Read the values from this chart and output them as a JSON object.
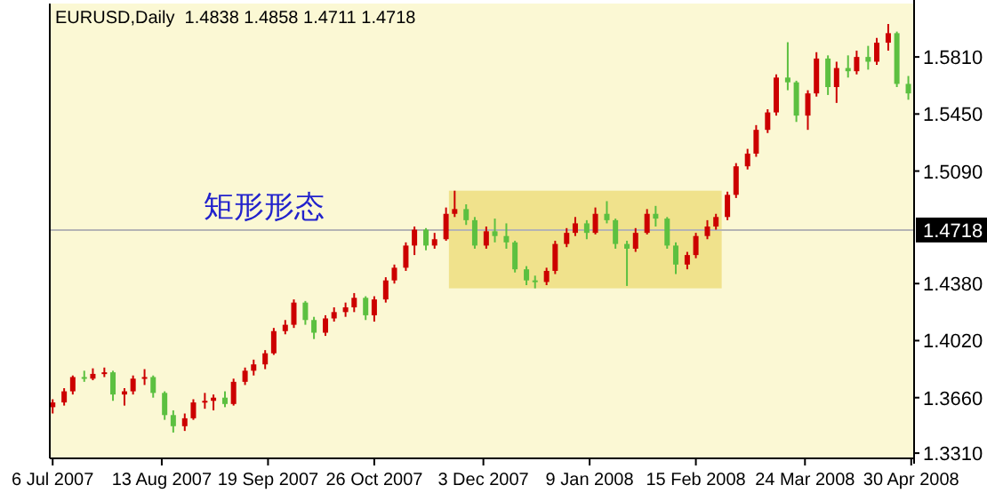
{
  "chart_data": {
    "type": "candlestick",
    "title": "EURUSD,Daily  1.4838 1.4858 1.4711 1.4718",
    "x": [
      "2007-07-06",
      "2007-07-10",
      "2007-07-13",
      "2007-07-17",
      "2007-07-20",
      "2007-07-24",
      "2007-07-27",
      "2007-07-31",
      "2007-08-03",
      "2007-08-07",
      "2007-08-10",
      "2007-08-14",
      "2007-08-17",
      "2007-08-21",
      "2007-08-24",
      "2007-08-28",
      "2007-08-31",
      "2007-09-04",
      "2007-09-07",
      "2007-09-11",
      "2007-09-14",
      "2007-09-18",
      "2007-09-21",
      "2007-09-25",
      "2007-09-28",
      "2007-10-02",
      "2007-10-05",
      "2007-10-09",
      "2007-10-12",
      "2007-10-16",
      "2007-10-19",
      "2007-10-23",
      "2007-10-26",
      "2007-10-30",
      "2007-11-02",
      "2007-11-06",
      "2007-11-09",
      "2007-11-13",
      "2007-11-16",
      "2007-11-20",
      "2007-11-23",
      "2007-11-27",
      "2007-11-30",
      "2007-12-04",
      "2007-12-07",
      "2007-12-11",
      "2007-12-14",
      "2007-12-18",
      "2007-12-21",
      "2007-12-25",
      "2007-12-28",
      "2008-01-01",
      "2008-01-04",
      "2008-01-08",
      "2008-01-11",
      "2008-01-15",
      "2008-01-18",
      "2008-01-22",
      "2008-01-25",
      "2008-01-29",
      "2008-02-01",
      "2008-02-05",
      "2008-02-08",
      "2008-02-12",
      "2008-02-15",
      "2008-02-19",
      "2008-02-22",
      "2008-02-26",
      "2008-02-29",
      "2008-03-04",
      "2008-03-07",
      "2008-03-11",
      "2008-03-14",
      "2008-03-18",
      "2008-03-21",
      "2008-03-25",
      "2008-03-28",
      "2008-04-01",
      "2008-04-04",
      "2008-04-08",
      "2008-04-11",
      "2008-04-15",
      "2008-04-18",
      "2008-04-22",
      "2008-04-25",
      "2008-04-29"
    ],
    "ohlc": [
      [
        1.36,
        1.365,
        1.356,
        1.363
      ],
      [
        1.363,
        1.372,
        1.361,
        1.37
      ],
      [
        1.37,
        1.38,
        1.368,
        1.379
      ],
      [
        1.379,
        1.383,
        1.376,
        1.378
      ],
      [
        1.378,
        1.3845,
        1.377,
        1.381
      ],
      [
        1.381,
        1.385,
        1.379,
        1.382
      ],
      [
        1.382,
        1.383,
        1.364,
        1.368
      ],
      [
        1.368,
        1.372,
        1.361,
        1.37
      ],
      [
        1.37,
        1.38,
        1.368,
        1.378
      ],
      [
        1.378,
        1.384,
        1.374,
        1.379
      ],
      [
        1.379,
        1.38,
        1.366,
        1.369
      ],
      [
        1.369,
        1.37,
        1.352,
        1.355
      ],
      [
        1.355,
        1.358,
        1.344,
        1.348
      ],
      [
        1.348,
        1.356,
        1.345,
        1.353
      ],
      [
        1.353,
        1.365,
        1.352,
        1.363
      ],
      [
        1.363,
        1.369,
        1.359,
        1.364
      ],
      [
        1.364,
        1.368,
        1.358,
        1.366
      ],
      [
        1.366,
        1.37,
        1.36,
        1.362
      ],
      [
        1.362,
        1.378,
        1.361,
        1.376
      ],
      [
        1.376,
        1.385,
        1.374,
        1.383
      ],
      [
        1.383,
        1.39,
        1.38,
        1.387
      ],
      [
        1.387,
        1.396,
        1.384,
        1.394
      ],
      [
        1.394,
        1.41,
        1.393,
        1.408
      ],
      [
        1.408,
        1.415,
        1.406,
        1.412
      ],
      [
        1.412,
        1.428,
        1.41,
        1.426
      ],
      [
        1.426,
        1.427,
        1.412,
        1.415
      ],
      [
        1.415,
        1.417,
        1.403,
        1.407
      ],
      [
        1.407,
        1.418,
        1.405,
        1.416
      ],
      [
        1.416,
        1.423,
        1.414,
        1.42
      ],
      [
        1.42,
        1.426,
        1.417,
        1.423
      ],
      [
        1.423,
        1.432,
        1.42,
        1.429
      ],
      [
        1.429,
        1.43,
        1.415,
        1.418
      ],
      [
        1.418,
        1.43,
        1.414,
        1.428
      ],
      [
        1.428,
        1.442,
        1.426,
        1.44
      ],
      [
        1.44,
        1.45,
        1.438,
        1.448
      ],
      [
        1.448,
        1.464,
        1.446,
        1.462
      ],
      [
        1.462,
        1.474,
        1.456,
        1.472
      ],
      [
        1.472,
        1.473,
        1.459,
        1.462
      ],
      [
        1.462,
        1.47,
        1.46,
        1.466
      ],
      [
        1.466,
        1.486,
        1.465,
        1.482
      ],
      [
        1.482,
        1.4966,
        1.48,
        1.485
      ],
      [
        1.485,
        1.488,
        1.475,
        1.478
      ],
      [
        1.478,
        1.48,
        1.46,
        1.462
      ],
      [
        1.462,
        1.474,
        1.46,
        1.471
      ],
      [
        1.471,
        1.479,
        1.464,
        1.468
      ],
      [
        1.468,
        1.476,
        1.46,
        1.464
      ],
      [
        1.464,
        1.465,
        1.445,
        1.447
      ],
      [
        1.447,
        1.449,
        1.437,
        1.44
      ],
      [
        1.44,
        1.443,
        1.435,
        1.439
      ],
      [
        1.439,
        1.448,
        1.437,
        1.446
      ],
      [
        1.446,
        1.465,
        1.444,
        1.463
      ],
      [
        1.463,
        1.473,
        1.461,
        1.47
      ],
      [
        1.47,
        1.48,
        1.468,
        1.476
      ],
      [
        1.476,
        1.478,
        1.466,
        1.47
      ],
      [
        1.47,
        1.486,
        1.469,
        1.482
      ],
      [
        1.482,
        1.49,
        1.476,
        1.478
      ],
      [
        1.478,
        1.479,
        1.46,
        1.463
      ],
      [
        1.463,
        1.465,
        1.4365,
        1.46
      ],
      [
        1.46,
        1.473,
        1.458,
        1.47
      ],
      [
        1.47,
        1.485,
        1.469,
        1.482
      ],
      [
        1.482,
        1.487,
        1.474,
        1.479
      ],
      [
        1.479,
        1.48,
        1.46,
        1.462
      ],
      [
        1.462,
        1.464,
        1.444,
        1.45
      ],
      [
        1.45,
        1.458,
        1.447,
        1.456
      ],
      [
        1.456,
        1.47,
        1.454,
        1.468
      ],
      [
        1.468,
        1.478,
        1.466,
        1.474
      ],
      [
        1.474,
        1.482,
        1.472,
        1.48
      ],
      [
        1.48,
        1.496,
        1.478,
        1.494
      ],
      [
        1.494,
        1.514,
        1.492,
        1.512
      ],
      [
        1.512,
        1.523,
        1.51,
        1.52
      ],
      [
        1.52,
        1.538,
        1.518,
        1.535
      ],
      [
        1.535,
        1.548,
        1.533,
        1.546
      ],
      [
        1.546,
        1.57,
        1.544,
        1.568
      ],
      [
        1.568,
        1.5903,
        1.56,
        1.565
      ],
      [
        1.565,
        1.566,
        1.54,
        1.544
      ],
      [
        1.544,
        1.56,
        1.535,
        1.558
      ],
      [
        1.558,
        1.584,
        1.556,
        1.58
      ],
      [
        1.58,
        1.582,
        1.557,
        1.562
      ],
      [
        1.562,
        1.578,
        1.552,
        1.574
      ],
      [
        1.574,
        1.582,
        1.568,
        1.572
      ],
      [
        1.572,
        1.585,
        1.57,
        1.581
      ],
      [
        1.581,
        1.588,
        1.573,
        1.578
      ],
      [
        1.578,
        1.593,
        1.576,
        1.59
      ],
      [
        1.59,
        1.6018,
        1.585,
        1.596
      ],
      [
        1.596,
        1.597,
        1.562,
        1.564
      ],
      [
        1.564,
        1.569,
        1.554,
        1.558
      ]
    ],
    "colors": [
      "#cc0000",
      "#cc0000",
      "#cc0000",
      "#5cc040",
      "#cc0000",
      "#cc0000",
      "#5cc040",
      "#cc0000",
      "#cc0000",
      "#cc0000",
      "#5cc040",
      "#5cc040",
      "#5cc040",
      "#cc0000",
      "#cc0000",
      "#cc0000",
      "#cc0000",
      "#5cc040",
      "#cc0000",
      "#cc0000",
      "#cc0000",
      "#cc0000",
      "#cc0000",
      "#cc0000",
      "#cc0000",
      "#5cc040",
      "#5cc040",
      "#cc0000",
      "#cc0000",
      "#cc0000",
      "#cc0000",
      "#5cc040",
      "#cc0000",
      "#cc0000",
      "#cc0000",
      "#cc0000",
      "#cc0000",
      "#5cc040",
      "#cc0000",
      "#cc0000",
      "#cc0000",
      "#5cc040",
      "#5cc040",
      "#cc0000",
      "#5cc040",
      "#5cc040",
      "#5cc040",
      "#5cc040",
      "#5cc040",
      "#cc0000",
      "#cc0000",
      "#cc0000",
      "#cc0000",
      "#5cc040",
      "#cc0000",
      "#5cc040",
      "#5cc040",
      "#5cc040",
      "#cc0000",
      "#cc0000",
      "#5cc040",
      "#5cc040",
      "#5cc040",
      "#cc0000",
      "#cc0000",
      "#cc0000",
      "#cc0000",
      "#cc0000",
      "#cc0000",
      "#cc0000",
      "#cc0000",
      "#cc0000",
      "#cc0000",
      "#5cc040",
      "#5cc040",
      "#cc0000",
      "#cc0000",
      "#5cc040",
      "#cc0000",
      "#5cc040",
      "#cc0000",
      "#5cc040",
      "#cc0000",
      "#cc0000",
      "#5cc040",
      "#5cc040"
    ],
    "xlim": [
      "2007-07-05",
      "2008-05-01"
    ],
    "xticks": [
      {
        "value": "2007-07-06",
        "label": "6 Jul 2007"
      },
      {
        "value": "2007-08-13",
        "label": "13 Aug 2007"
      },
      {
        "value": "2007-09-19",
        "label": "19 Sep 2007"
      },
      {
        "value": "2007-10-26",
        "label": "26 Oct 2007"
      },
      {
        "value": "2007-12-03",
        "label": "3 Dec 2007"
      },
      {
        "value": "2008-01-09",
        "label": "9 Jan 2008"
      },
      {
        "value": "2008-02-15",
        "label": "15 Feb 2008"
      },
      {
        "value": "2008-03-24",
        "label": "24 Mar 2008"
      },
      {
        "value": "2008-04-30",
        "label": "30 Apr 2008"
      }
    ],
    "ylim": [
      1.3277,
      1.6147
    ],
    "yticks": [
      {
        "value": 1.331,
        "label": "1.3310"
      },
      {
        "value": 1.366,
        "label": "1.3660"
      },
      {
        "value": 1.402,
        "label": "1.4020"
      },
      {
        "value": 1.438,
        "label": "1.4380"
      },
      {
        "value": 1.509,
        "label": "1.5090"
      },
      {
        "value": 1.545,
        "label": "1.5450"
      },
      {
        "value": 1.581,
        "label": "1.5810"
      }
    ],
    "ref_lines": [
      {
        "axis": "y",
        "value": 1.4718,
        "label": "1.4718",
        "color": "#b4b4b4"
      }
    ],
    "bands": [
      {
        "axis": "x",
        "from": "2007-11-21",
        "to": "2008-02-24",
        "color": "#f0e28c"
      }
    ],
    "annotations": [
      "矩形形态"
    ],
    "grid": false
  }
}
